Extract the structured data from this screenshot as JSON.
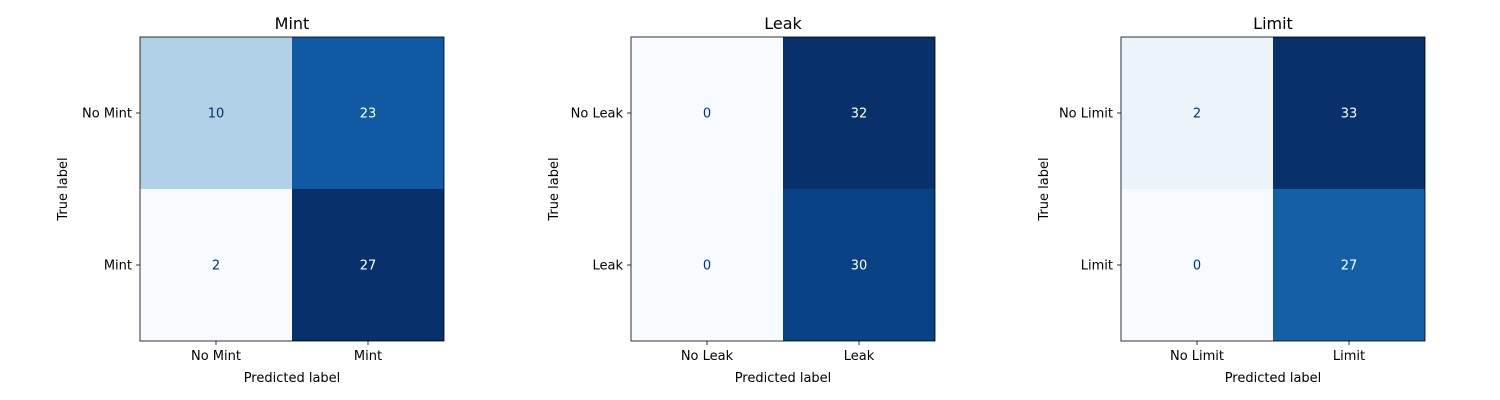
{
  "chart_data": [
    {
      "type": "heatmap",
      "title": "Mint",
      "xlabel": "Predicted label",
      "ylabel": "True label",
      "x_categories": [
        "No Mint",
        "Mint"
      ],
      "y_categories": [
        "No Mint",
        "Mint"
      ],
      "values": [
        [
          10,
          23
        ],
        [
          2,
          27
        ]
      ],
      "colormap": "Blues",
      "grid": false
    },
    {
      "type": "heatmap",
      "title": "Leak",
      "xlabel": "Predicted label",
      "ylabel": "True label",
      "x_categories": [
        "No Leak",
        "Leak"
      ],
      "y_categories": [
        "No Leak",
        "Leak"
      ],
      "values": [
        [
          0,
          32
        ],
        [
          0,
          30
        ]
      ],
      "colormap": "Blues",
      "grid": false
    },
    {
      "type": "heatmap",
      "title": "Limit",
      "xlabel": "Predicted label",
      "ylabel": "True label",
      "x_categories": [
        "No Limit",
        "Limit"
      ],
      "y_categories": [
        "No Limit",
        "Limit"
      ],
      "values": [
        [
          2,
          33
        ],
        [
          0,
          27
        ]
      ],
      "colormap": "Blues",
      "grid": false
    }
  ],
  "colors": {
    "blues_stops": [
      "#f7fbff",
      "#deebf7",
      "#c6dbef",
      "#9ecae1",
      "#6baed6",
      "#4292c6",
      "#2171b5",
      "#08519c",
      "#08306b"
    ],
    "text_dark": "#08306b",
    "text_light": "#ffffff",
    "axis": "#000000"
  }
}
